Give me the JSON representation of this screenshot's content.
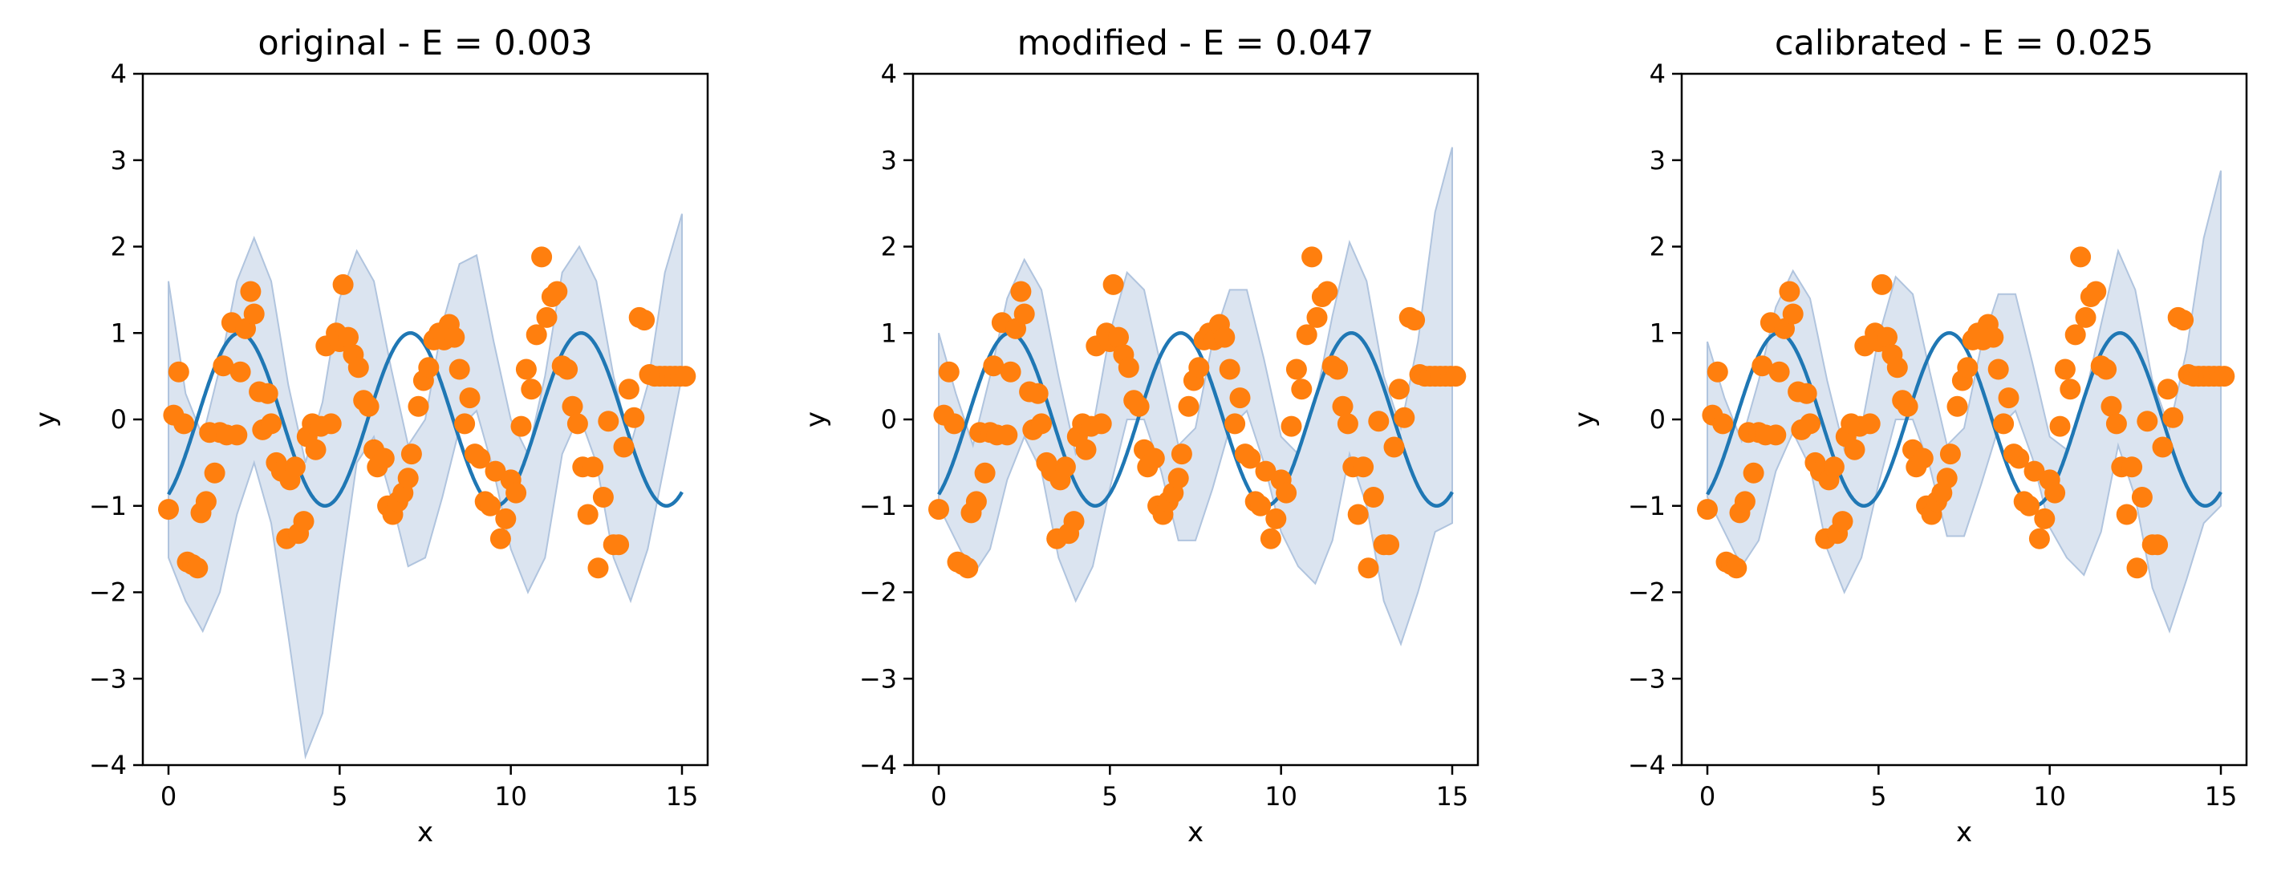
{
  "colors": {
    "band": "#b0c4de",
    "mean_line": "#1f77b4",
    "observations": "#ff7f0e",
    "axes": "#000000"
  },
  "chart_data": [
    {
      "type": "line",
      "title": "original - E = 0.003",
      "xlabel": "x",
      "ylabel": "y",
      "xlim": [
        -0.75,
        15.75
      ],
      "ylim": [
        -4,
        4
      ],
      "xticks": [
        0,
        5,
        10,
        15
      ],
      "yticks": [
        -4,
        -3,
        -2,
        -1,
        0,
        1,
        2,
        3,
        4
      ],
      "grid": false,
      "series": [
        {
          "kind": "band",
          "x": [
            0,
            0.5,
            1.0,
            1.5,
            2.0,
            2.5,
            3.0,
            3.5,
            4.0,
            4.5,
            5.0,
            5.5,
            6.0,
            6.5,
            7.0,
            7.5,
            8.0,
            8.5,
            9.0,
            9.5,
            10.0,
            10.5,
            11.0,
            11.5,
            12.0,
            12.5,
            13.0,
            13.5,
            14.0,
            14.5,
            15.0
          ],
          "upper": [
            1.6,
            0.3,
            -0.2,
            0.6,
            1.6,
            2.1,
            1.6,
            0.4,
            -0.5,
            0.2,
            1.4,
            1.95,
            1.6,
            0.6,
            -0.3,
            0.0,
            1.1,
            1.8,
            1.9,
            0.9,
            0.0,
            -0.4,
            0.5,
            1.7,
            2.0,
            1.6,
            0.5,
            -0.3,
            0.4,
            1.7,
            2.38
          ],
          "lower": [
            -1.6,
            -2.1,
            -2.45,
            -2.0,
            -1.1,
            -0.5,
            -1.2,
            -2.5,
            -3.9,
            -3.4,
            -1.9,
            -0.5,
            -0.2,
            -0.9,
            -1.7,
            -1.6,
            -0.9,
            -0.1,
            0.1,
            -0.6,
            -1.5,
            -2.0,
            -1.6,
            -0.4,
            0.05,
            -0.5,
            -1.6,
            -2.1,
            -1.5,
            -0.5,
            0.5
          ]
        },
        {
          "kind": "mean",
          "amplitude": 1.0,
          "frequency": 1.26,
          "phase": -1.05,
          "x_start": 0.0,
          "x_end": 15.0
        },
        {
          "kind": "points",
          "x": [
            0.0,
            0.15,
            0.3,
            0.45,
            0.55,
            0.7,
            0.85,
            0.95,
            1.1,
            1.2,
            1.35,
            1.5,
            1.6,
            1.7,
            1.85,
            2.0,
            2.1,
            2.25,
            2.4,
            2.5,
            2.65,
            2.75,
            2.9,
            3.0,
            3.15,
            3.3,
            3.45,
            3.55,
            3.7,
            3.8,
            3.95,
            4.05,
            4.2,
            4.3,
            4.45,
            4.6,
            4.75,
            4.9,
            5.0,
            5.1,
            5.25,
            5.4,
            5.55,
            5.7,
            5.85,
            6.0,
            6.1,
            6.3,
            6.4,
            6.55,
            6.7,
            6.85,
            7.0,
            7.1,
            7.3,
            7.45,
            7.6,
            7.75,
            7.9,
            8.05,
            8.2,
            8.35,
            8.5,
            8.65,
            8.8,
            8.95,
            9.1,
            9.25,
            9.4,
            9.55,
            9.7,
            9.85,
            10.0,
            10.15,
            10.3,
            10.45,
            10.6,
            10.75,
            10.9,
            11.05,
            11.2,
            11.35,
            11.5,
            11.65,
            11.8,
            11.95,
            12.1,
            12.25,
            12.4,
            12.55,
            12.7,
            12.85,
            13.0,
            13.15,
            13.3,
            13.45,
            13.6,
            13.75,
            13.9,
            14.05,
            14.2,
            14.35,
            14.5,
            14.65,
            14.8,
            14.95,
            15.1
          ],
          "y": [
            -1.04,
            0.05,
            0.55,
            -0.05,
            -1.65,
            -1.68,
            -1.72,
            -1.08,
            -0.95,
            -0.15,
            -0.62,
            -0.15,
            0.62,
            -0.18,
            1.12,
            -0.18,
            0.55,
            1.05,
            1.48,
            1.22,
            0.32,
            -0.12,
            0.3,
            -0.05,
            -0.5,
            -0.6,
            -1.38,
            -0.7,
            -0.55,
            -1.32,
            -1.18,
            -0.2,
            -0.05,
            -0.35,
            -0.08,
            0.85,
            -0.05,
            1.0,
            0.9,
            1.56,
            0.95,
            0.75,
            0.6,
            0.22,
            0.15,
            -0.35,
            -0.55,
            -0.45,
            -1.0,
            -1.1,
            -0.95,
            -0.85,
            -0.68,
            -0.4,
            0.15,
            0.45,
            0.6,
            0.92,
            1.0,
            0.92,
            1.1,
            0.95,
            0.58,
            -0.05,
            0.25,
            -0.4,
            -0.45,
            -0.95,
            -1.0,
            -0.6,
            -1.38,
            -1.15,
            -0.7,
            -0.85,
            -0.08,
            0.58,
            0.35,
            0.98,
            1.88,
            1.18,
            1.42,
            1.48,
            0.62,
            0.58,
            0.15,
            -0.05,
            -0.55,
            -1.1,
            -0.55,
            -1.72,
            -0.9,
            -0.02,
            -1.45,
            -1.45,
            -0.32,
            0.35,
            0.02,
            1.18,
            1.15,
            0.52,
            0.5,
            0.5,
            0.5,
            0.5,
            0.5,
            0.5,
            0.5
          ]
        }
      ]
    },
    {
      "type": "line",
      "title": "modified - E = 0.047",
      "xlabel": "x",
      "ylabel": "y",
      "xlim": [
        -0.75,
        15.75
      ],
      "ylim": [
        -4,
        4
      ],
      "xticks": [
        0,
        5,
        10,
        15
      ],
      "yticks": [
        -4,
        -3,
        -2,
        -1,
        0,
        1,
        2,
        3,
        4
      ],
      "grid": false,
      "series": [
        {
          "kind": "band",
          "x": [
            0,
            0.5,
            1.0,
            1.5,
            2.0,
            2.5,
            3.0,
            3.5,
            4.0,
            4.5,
            5.0,
            5.5,
            6.0,
            6.5,
            7.0,
            7.5,
            8.0,
            8.5,
            9.0,
            9.5,
            10.0,
            10.5,
            11.0,
            11.5,
            12.0,
            12.5,
            13.0,
            13.5,
            14.0,
            14.5,
            15.0
          ],
          "upper": [
            1.0,
            0.3,
            -0.3,
            0.5,
            1.4,
            1.85,
            1.5,
            0.5,
            -0.4,
            -0.1,
            1.0,
            1.7,
            1.5,
            0.6,
            -0.3,
            -0.1,
            0.9,
            1.5,
            1.5,
            0.7,
            -0.2,
            -0.4,
            0.2,
            1.2,
            2.05,
            1.6,
            0.5,
            -0.1,
            0.9,
            2.4,
            3.15
          ],
          "lower": [
            -1.0,
            -1.4,
            -1.8,
            -1.5,
            -0.7,
            -0.2,
            -0.6,
            -1.6,
            -2.1,
            -1.7,
            -0.8,
            0.0,
            0.0,
            -0.6,
            -1.4,
            -1.4,
            -0.8,
            -0.1,
            0.1,
            -0.5,
            -1.3,
            -1.7,
            -1.9,
            -1.4,
            -0.4,
            -1.0,
            -2.1,
            -2.6,
            -2.0,
            -1.3,
            -1.2
          ]
        },
        {
          "kind": "mean",
          "amplitude": 1.0,
          "frequency": 1.26,
          "phase": -1.05,
          "x_start": 0.0,
          "x_end": 15.0
        },
        {
          "kind": "points",
          "x": [
            0.0,
            0.15,
            0.3,
            0.45,
            0.55,
            0.7,
            0.85,
            0.95,
            1.1,
            1.2,
            1.35,
            1.5,
            1.6,
            1.7,
            1.85,
            2.0,
            2.1,
            2.25,
            2.4,
            2.5,
            2.65,
            2.75,
            2.9,
            3.0,
            3.15,
            3.3,
            3.45,
            3.55,
            3.7,
            3.8,
            3.95,
            4.05,
            4.2,
            4.3,
            4.45,
            4.6,
            4.75,
            4.9,
            5.0,
            5.1,
            5.25,
            5.4,
            5.55,
            5.7,
            5.85,
            6.0,
            6.1,
            6.3,
            6.4,
            6.55,
            6.7,
            6.85,
            7.0,
            7.1,
            7.3,
            7.45,
            7.6,
            7.75,
            7.9,
            8.05,
            8.2,
            8.35,
            8.5,
            8.65,
            8.8,
            8.95,
            9.1,
            9.25,
            9.4,
            9.55,
            9.7,
            9.85,
            10.0,
            10.15,
            10.3,
            10.45,
            10.6,
            10.75,
            10.9,
            11.05,
            11.2,
            11.35,
            11.5,
            11.65,
            11.8,
            11.95,
            12.1,
            12.25,
            12.4,
            12.55,
            12.7,
            12.85,
            13.0,
            13.15,
            13.3,
            13.45,
            13.6,
            13.75,
            13.9,
            14.05,
            14.2,
            14.35,
            14.5,
            14.65,
            14.8,
            14.95,
            15.1
          ],
          "y": [
            -1.04,
            0.05,
            0.55,
            -0.05,
            -1.65,
            -1.68,
            -1.72,
            -1.08,
            -0.95,
            -0.15,
            -0.62,
            -0.15,
            0.62,
            -0.18,
            1.12,
            -0.18,
            0.55,
            1.05,
            1.48,
            1.22,
            0.32,
            -0.12,
            0.3,
            -0.05,
            -0.5,
            -0.6,
            -1.38,
            -0.7,
            -0.55,
            -1.32,
            -1.18,
            -0.2,
            -0.05,
            -0.35,
            -0.08,
            0.85,
            -0.05,
            1.0,
            0.9,
            1.56,
            0.95,
            0.75,
            0.6,
            0.22,
            0.15,
            -0.35,
            -0.55,
            -0.45,
            -1.0,
            -1.1,
            -0.95,
            -0.85,
            -0.68,
            -0.4,
            0.15,
            0.45,
            0.6,
            0.92,
            1.0,
            0.92,
            1.1,
            0.95,
            0.58,
            -0.05,
            0.25,
            -0.4,
            -0.45,
            -0.95,
            -1.0,
            -0.6,
            -1.38,
            -1.15,
            -0.7,
            -0.85,
            -0.08,
            0.58,
            0.35,
            0.98,
            1.88,
            1.18,
            1.42,
            1.48,
            0.62,
            0.58,
            0.15,
            -0.05,
            -0.55,
            -1.1,
            -0.55,
            -1.72,
            -0.9,
            -0.02,
            -1.45,
            -1.45,
            -0.32,
            0.35,
            0.02,
            1.18,
            1.15,
            0.52,
            0.5,
            0.5,
            0.5,
            0.5,
            0.5,
            0.5,
            0.5
          ]
        }
      ]
    },
    {
      "type": "line",
      "title": "calibrated - E = 0.025",
      "xlabel": "x",
      "ylabel": "y",
      "xlim": [
        -0.75,
        15.75
      ],
      "ylim": [
        -4,
        4
      ],
      "xticks": [
        0,
        5,
        10,
        15
      ],
      "yticks": [
        -4,
        -3,
        -2,
        -1,
        0,
        1,
        2,
        3,
        4
      ],
      "grid": false,
      "series": [
        {
          "kind": "band",
          "x": [
            0,
            0.5,
            1.0,
            1.5,
            2.0,
            2.5,
            3.0,
            3.5,
            4.0,
            4.5,
            5.0,
            5.5,
            6.0,
            6.5,
            7.0,
            7.5,
            8.0,
            8.5,
            9.0,
            9.5,
            10.0,
            10.5,
            11.0,
            11.5,
            12.0,
            12.5,
            13.0,
            13.5,
            14.0,
            14.5,
            15.0
          ],
          "upper": [
            0.9,
            0.25,
            -0.25,
            0.45,
            1.3,
            1.72,
            1.4,
            0.45,
            -0.35,
            -0.1,
            0.95,
            1.65,
            1.45,
            0.55,
            -0.3,
            -0.1,
            0.85,
            1.45,
            1.45,
            0.65,
            -0.2,
            -0.35,
            0.2,
            1.1,
            1.95,
            1.5,
            0.45,
            -0.1,
            0.8,
            2.1,
            2.88
          ],
          "lower": [
            -0.9,
            -1.3,
            -1.7,
            -1.4,
            -0.6,
            -0.15,
            -0.55,
            -1.5,
            -2.0,
            -1.6,
            -0.75,
            0.0,
            0.0,
            -0.55,
            -1.35,
            -1.35,
            -0.75,
            -0.1,
            0.1,
            -0.45,
            -1.25,
            -1.6,
            -1.8,
            -1.3,
            -0.3,
            -0.9,
            -1.95,
            -2.45,
            -1.85,
            -1.2,
            -1.0
          ]
        },
        {
          "kind": "mean",
          "amplitude": 1.0,
          "frequency": 1.26,
          "phase": -1.05,
          "x_start": 0.0,
          "x_end": 15.0
        },
        {
          "kind": "points",
          "x": [
            0.0,
            0.15,
            0.3,
            0.45,
            0.55,
            0.7,
            0.85,
            0.95,
            1.1,
            1.2,
            1.35,
            1.5,
            1.6,
            1.7,
            1.85,
            2.0,
            2.1,
            2.25,
            2.4,
            2.5,
            2.65,
            2.75,
            2.9,
            3.0,
            3.15,
            3.3,
            3.45,
            3.55,
            3.7,
            3.8,
            3.95,
            4.05,
            4.2,
            4.3,
            4.45,
            4.6,
            4.75,
            4.9,
            5.0,
            5.1,
            5.25,
            5.4,
            5.55,
            5.7,
            5.85,
            6.0,
            6.1,
            6.3,
            6.4,
            6.55,
            6.7,
            6.85,
            7.0,
            7.1,
            7.3,
            7.45,
            7.6,
            7.75,
            7.9,
            8.05,
            8.2,
            8.35,
            8.5,
            8.65,
            8.8,
            8.95,
            9.1,
            9.25,
            9.4,
            9.55,
            9.7,
            9.85,
            10.0,
            10.15,
            10.3,
            10.45,
            10.6,
            10.75,
            10.9,
            11.05,
            11.2,
            11.35,
            11.5,
            11.65,
            11.8,
            11.95,
            12.1,
            12.25,
            12.4,
            12.55,
            12.7,
            12.85,
            13.0,
            13.15,
            13.3,
            13.45,
            13.6,
            13.75,
            13.9,
            14.05,
            14.2,
            14.35,
            14.5,
            14.65,
            14.8,
            14.95,
            15.1
          ],
          "y": [
            -1.04,
            0.05,
            0.55,
            -0.05,
            -1.65,
            -1.68,
            -1.72,
            -1.08,
            -0.95,
            -0.15,
            -0.62,
            -0.15,
            0.62,
            -0.18,
            1.12,
            -0.18,
            0.55,
            1.05,
            1.48,
            1.22,
            0.32,
            -0.12,
            0.3,
            -0.05,
            -0.5,
            -0.6,
            -1.38,
            -0.7,
            -0.55,
            -1.32,
            -1.18,
            -0.2,
            -0.05,
            -0.35,
            -0.08,
            0.85,
            -0.05,
            1.0,
            0.9,
            1.56,
            0.95,
            0.75,
            0.6,
            0.22,
            0.15,
            -0.35,
            -0.55,
            -0.45,
            -1.0,
            -1.1,
            -0.95,
            -0.85,
            -0.68,
            -0.4,
            0.15,
            0.45,
            0.6,
            0.92,
            1.0,
            0.92,
            1.1,
            0.95,
            0.58,
            -0.05,
            0.25,
            -0.4,
            -0.45,
            -0.95,
            -1.0,
            -0.6,
            -1.38,
            -1.15,
            -0.7,
            -0.85,
            -0.08,
            0.58,
            0.35,
            0.98,
            1.88,
            1.18,
            1.42,
            1.48,
            0.62,
            0.58,
            0.15,
            -0.05,
            -0.55,
            -1.1,
            -0.55,
            -1.72,
            -0.9,
            -0.02,
            -1.45,
            -1.45,
            -0.32,
            0.35,
            0.02,
            1.18,
            1.15,
            0.52,
            0.5,
            0.5,
            0.5,
            0.5,
            0.5,
            0.5,
            0.5
          ]
        }
      ]
    }
  ]
}
